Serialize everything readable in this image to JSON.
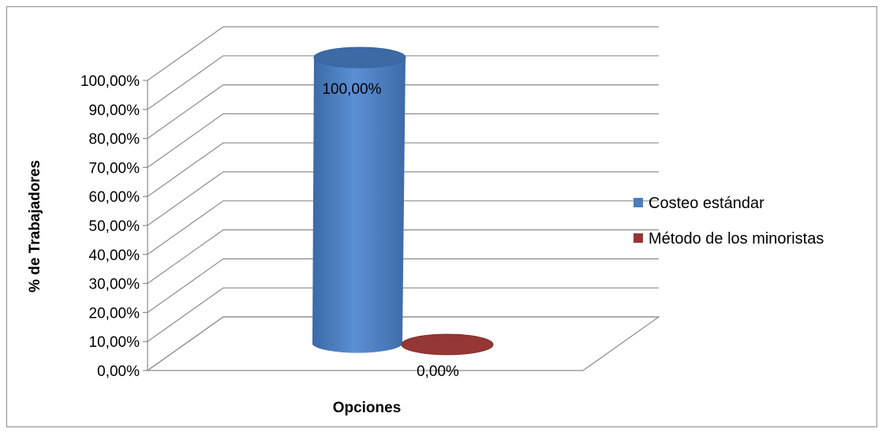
{
  "chart_data": {
    "type": "bar",
    "categories": [
      ""
    ],
    "series": [
      {
        "name": "Costeo estándar",
        "values": [
          100
        ],
        "color": "#4a7ebb"
      },
      {
        "name": "Método de los minoristas",
        "values": [
          0
        ],
        "color": "#953735"
      }
    ],
    "ylim": [
      0,
      100
    ],
    "yticks": [
      0,
      10,
      20,
      30,
      40,
      50,
      60,
      70,
      80,
      90,
      100
    ],
    "ytick_labels": [
      "0,00%",
      "10,00%",
      "20,00%",
      "30,00%",
      "40,00%",
      "50,00%",
      "60,00%",
      "70,00%",
      "80,00%",
      "90,00%",
      "100,00%"
    ],
    "data_labels": [
      "100,00%",
      "0,00%"
    ],
    "xlabel": "Opciones",
    "ylabel": "% de Trabajadores",
    "grid": true,
    "legend_position": "right",
    "style": "3d-cylinder"
  }
}
